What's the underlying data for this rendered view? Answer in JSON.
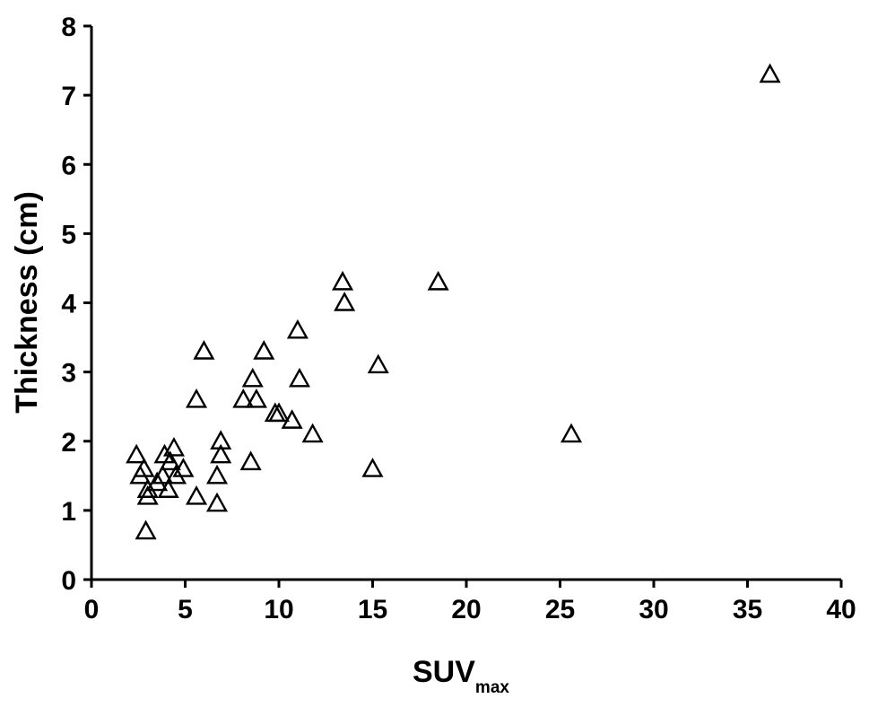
{
  "chart_data": {
    "type": "scatter",
    "title": "",
    "xlabel": "SUV",
    "xlabel_subscript": "max",
    "ylabel": "Thickness (cm)",
    "xlim": [
      0,
      40
    ],
    "ylim": [
      0,
      8
    ],
    "xticks": [
      0,
      5,
      10,
      15,
      20,
      25,
      30,
      35,
      40
    ],
    "yticks": [
      0,
      1,
      2,
      3,
      4,
      5,
      6,
      7,
      8
    ],
    "grid": false,
    "legend": "none",
    "marker": "open-triangle",
    "series": [
      {
        "points": [
          {
            "x": 2.4,
            "y": 1.8
          },
          {
            "x": 2.6,
            "y": 1.5
          },
          {
            "x": 2.8,
            "y": 1.6
          },
          {
            "x": 3.0,
            "y": 1.3
          },
          {
            "x": 3.0,
            "y": 1.2
          },
          {
            "x": 2.9,
            "y": 0.7
          },
          {
            "x": 3.5,
            "y": 1.4
          },
          {
            "x": 3.8,
            "y": 1.5
          },
          {
            "x": 3.9,
            "y": 1.8
          },
          {
            "x": 4.1,
            "y": 1.3
          },
          {
            "x": 4.2,
            "y": 1.7
          },
          {
            "x": 4.4,
            "y": 1.9
          },
          {
            "x": 4.5,
            "y": 1.5
          },
          {
            "x": 4.9,
            "y": 1.6
          },
          {
            "x": 5.6,
            "y": 2.6
          },
          {
            "x": 5.6,
            "y": 1.2
          },
          {
            "x": 6.0,
            "y": 3.3
          },
          {
            "x": 6.7,
            "y": 1.1
          },
          {
            "x": 6.7,
            "y": 1.5
          },
          {
            "x": 6.9,
            "y": 2.0
          },
          {
            "x": 6.9,
            "y": 1.8
          },
          {
            "x": 8.1,
            "y": 2.6
          },
          {
            "x": 8.5,
            "y": 1.7
          },
          {
            "x": 8.6,
            "y": 2.9
          },
          {
            "x": 8.8,
            "y": 2.6
          },
          {
            "x": 9.2,
            "y": 3.3
          },
          {
            "x": 9.8,
            "y": 2.4
          },
          {
            "x": 10.0,
            "y": 2.4
          },
          {
            "x": 10.7,
            "y": 2.3
          },
          {
            "x": 11.0,
            "y": 3.6
          },
          {
            "x": 11.1,
            "y": 2.9
          },
          {
            "x": 11.8,
            "y": 2.1
          },
          {
            "x": 13.4,
            "y": 4.3
          },
          {
            "x": 13.5,
            "y": 4.0
          },
          {
            "x": 15.0,
            "y": 1.6
          },
          {
            "x": 15.3,
            "y": 3.1
          },
          {
            "x": 18.5,
            "y": 4.3
          },
          {
            "x": 25.6,
            "y": 2.1
          },
          {
            "x": 36.2,
            "y": 7.3
          }
        ]
      }
    ]
  }
}
